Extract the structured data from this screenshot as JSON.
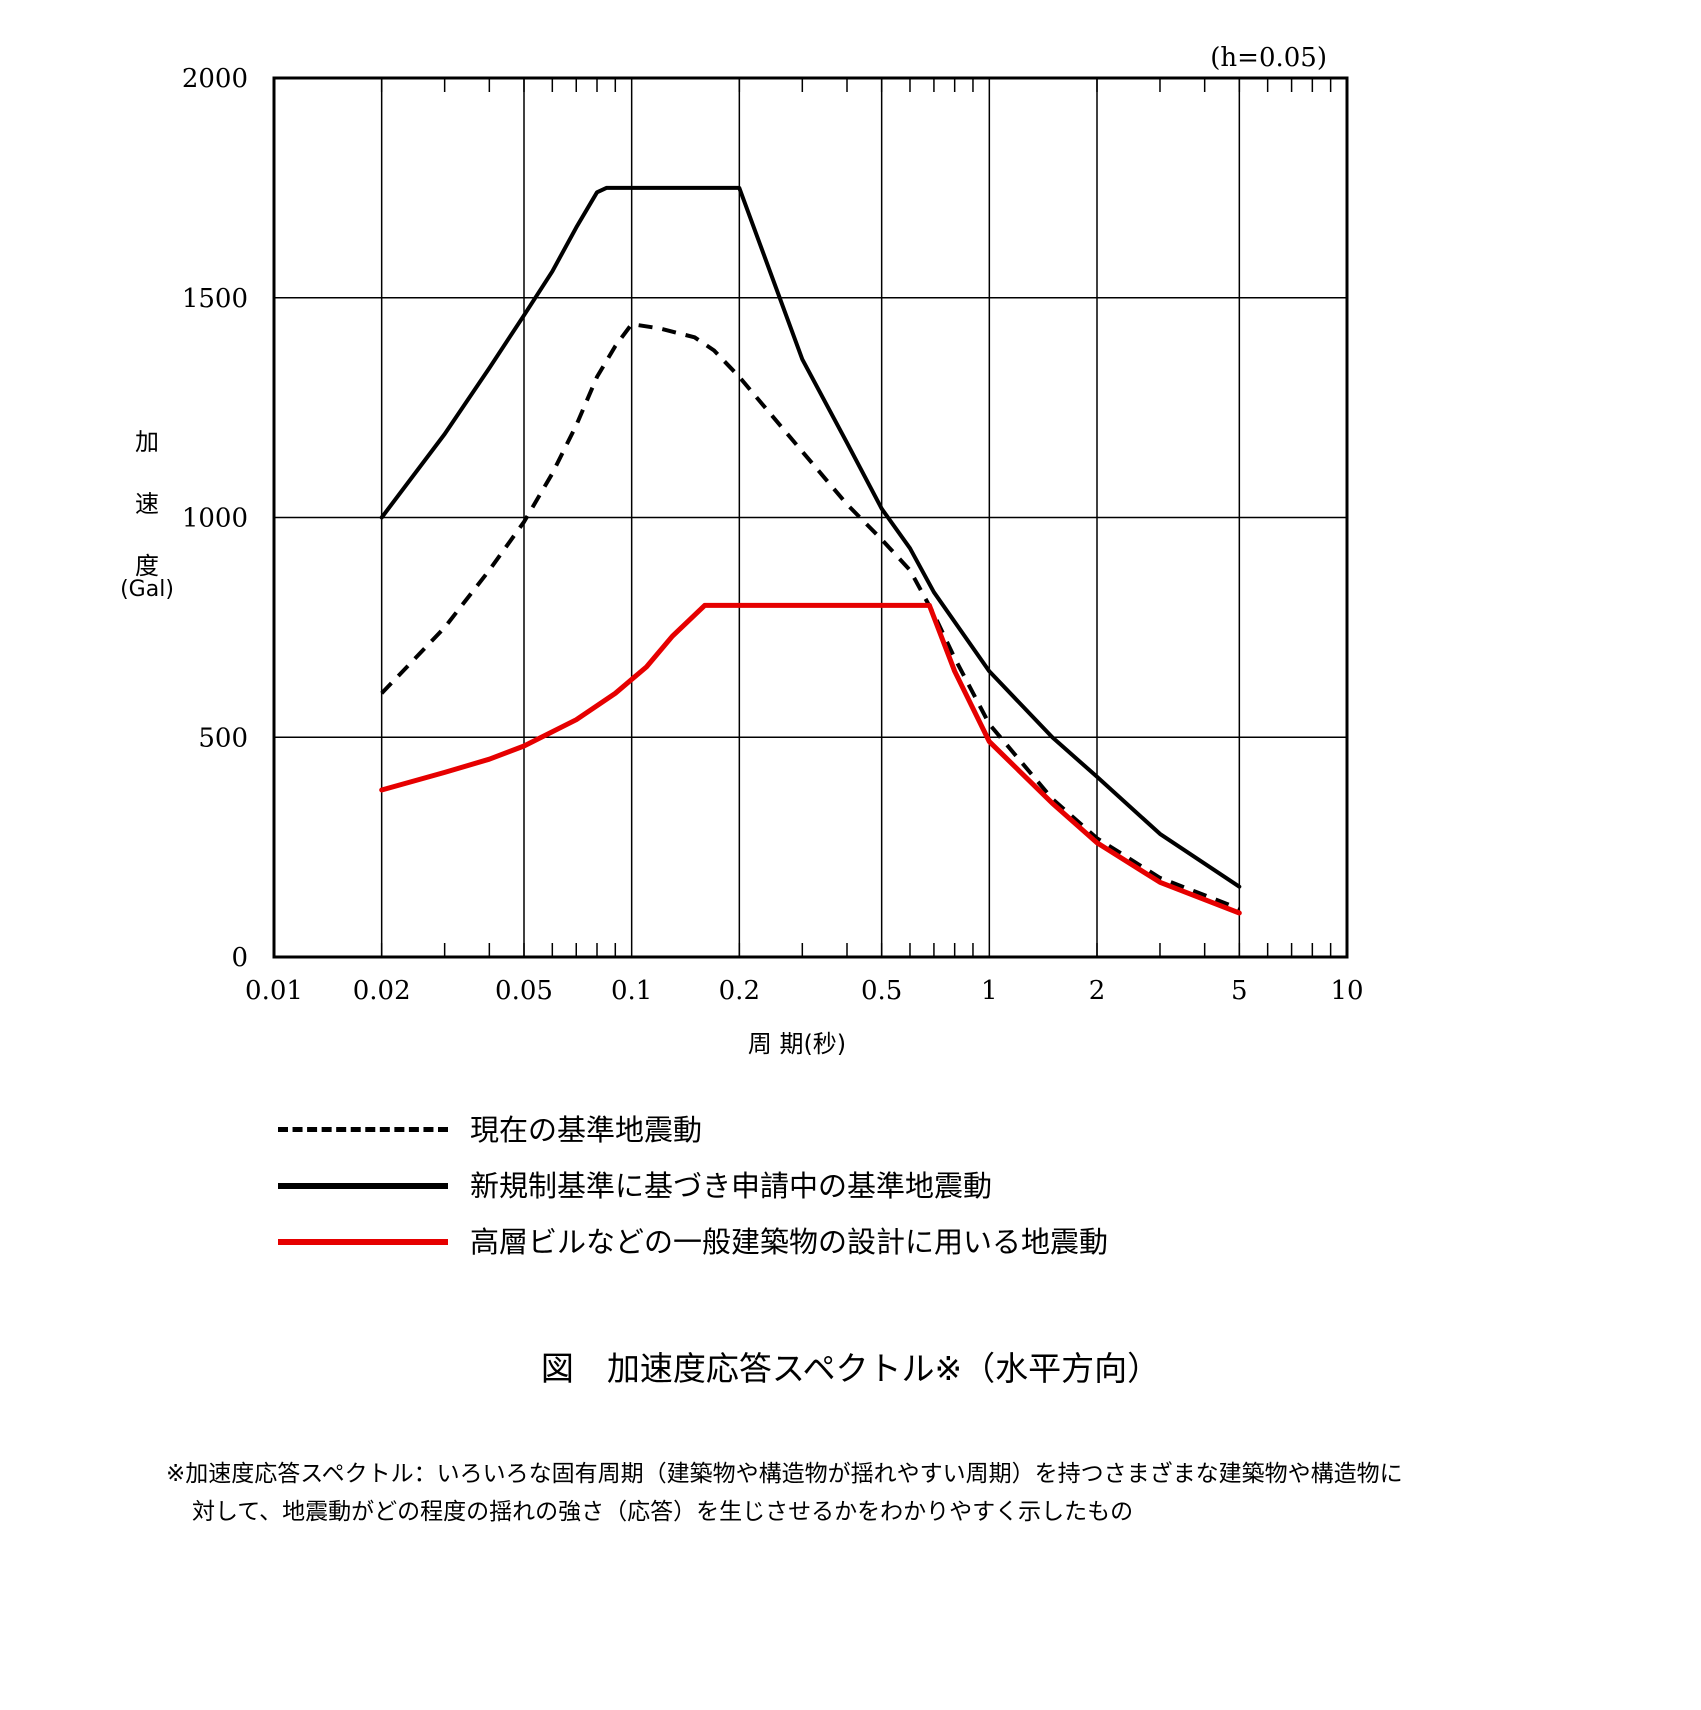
{
  "chart_data": {
    "type": "line",
    "annotation": "(h=0.05)",
    "xlabel": "周 期(秒)",
    "ylabel": "加速度",
    "ylabel_unit": "(Gal)",
    "x_scale": "log",
    "xlim": [
      0.01,
      10
    ],
    "ylim": [
      0,
      2000
    ],
    "x_ticks": [
      0.01,
      0.02,
      0.05,
      0.1,
      0.2,
      0.5,
      1,
      2,
      5,
      10
    ],
    "x_tick_labels": [
      "0.01",
      "0.02",
      "0.05",
      "0.1",
      "0.2",
      "0.5",
      "1",
      "2",
      "5",
      "10"
    ],
    "y_ticks": [
      0,
      500,
      1000,
      1500,
      2000
    ],
    "y_tick_labels": [
      "0",
      "500",
      "1000",
      "1500",
      "2000"
    ],
    "grid": true,
    "series": [
      {
        "name": "現在の基準地震動",
        "style": "dashed",
        "color": "#000000",
        "points": [
          [
            0.02,
            600
          ],
          [
            0.03,
            750
          ],
          [
            0.04,
            880
          ],
          [
            0.05,
            990
          ],
          [
            0.06,
            1100
          ],
          [
            0.07,
            1210
          ],
          [
            0.08,
            1320
          ],
          [
            0.09,
            1390
          ],
          [
            0.1,
            1440
          ],
          [
            0.12,
            1430
          ],
          [
            0.15,
            1410
          ],
          [
            0.17,
            1380
          ],
          [
            0.2,
            1320
          ],
          [
            0.3,
            1150
          ],
          [
            0.4,
            1030
          ],
          [
            0.5,
            950
          ],
          [
            0.6,
            880
          ],
          [
            0.7,
            780
          ],
          [
            0.8,
            680
          ],
          [
            1,
            530
          ],
          [
            1.5,
            360
          ],
          [
            2,
            270
          ],
          [
            3,
            180
          ],
          [
            5,
            110
          ]
        ]
      },
      {
        "name": "新規制基準に基づき申請中の基準地震動",
        "style": "solid",
        "color": "#000000",
        "points": [
          [
            0.02,
            1000
          ],
          [
            0.03,
            1190
          ],
          [
            0.04,
            1340
          ],
          [
            0.05,
            1460
          ],
          [
            0.06,
            1560
          ],
          [
            0.07,
            1660
          ],
          [
            0.08,
            1740
          ],
          [
            0.085,
            1750
          ],
          [
            0.1,
            1750
          ],
          [
            0.15,
            1750
          ],
          [
            0.2,
            1750
          ],
          [
            0.3,
            1360
          ],
          [
            0.4,
            1170
          ],
          [
            0.5,
            1020
          ],
          [
            0.6,
            930
          ],
          [
            0.7,
            830
          ],
          [
            1,
            650
          ],
          [
            1.5,
            500
          ],
          [
            2,
            410
          ],
          [
            3,
            280
          ],
          [
            5,
            160
          ]
        ]
      },
      {
        "name": "高層ビルなどの一般建築物の設計に用いる地震動",
        "style": "solid",
        "color": "#e60000",
        "points": [
          [
            0.02,
            380
          ],
          [
            0.03,
            420
          ],
          [
            0.04,
            450
          ],
          [
            0.05,
            480
          ],
          [
            0.07,
            540
          ],
          [
            0.09,
            600
          ],
          [
            0.11,
            660
          ],
          [
            0.13,
            730
          ],
          [
            0.16,
            800
          ],
          [
            0.2,
            800
          ],
          [
            0.3,
            800
          ],
          [
            0.5,
            800
          ],
          [
            0.68,
            800
          ],
          [
            0.8,
            650
          ],
          [
            1,
            490
          ],
          [
            1.5,
            350
          ],
          [
            2,
            260
          ],
          [
            3,
            170
          ],
          [
            5,
            100
          ]
        ]
      }
    ]
  },
  "legend": [
    {
      "label": "現在の基準地震動",
      "style": "dashed",
      "color": "#000000"
    },
    {
      "label": "新規制基準に基づき申請中の基準地震動",
      "style": "solid",
      "color": "#000000"
    },
    {
      "label": "高層ビルなどの一般建築物の設計に用いる地震動",
      "style": "solid",
      "color": "#e60000"
    }
  ],
  "caption": "図　加速度応答スペクトル※（水平方向）",
  "footnote": {
    "line1": "※加速度応答スペクトル：いろいろな固有周期（建築物や構造物が揺れやすい周期）を持つさまざまな建築物や構造物に",
    "line2": "対して、地震動がどの程度の揺れの強さ（応答）を生じさせるかをわかりやすく示したもの"
  }
}
